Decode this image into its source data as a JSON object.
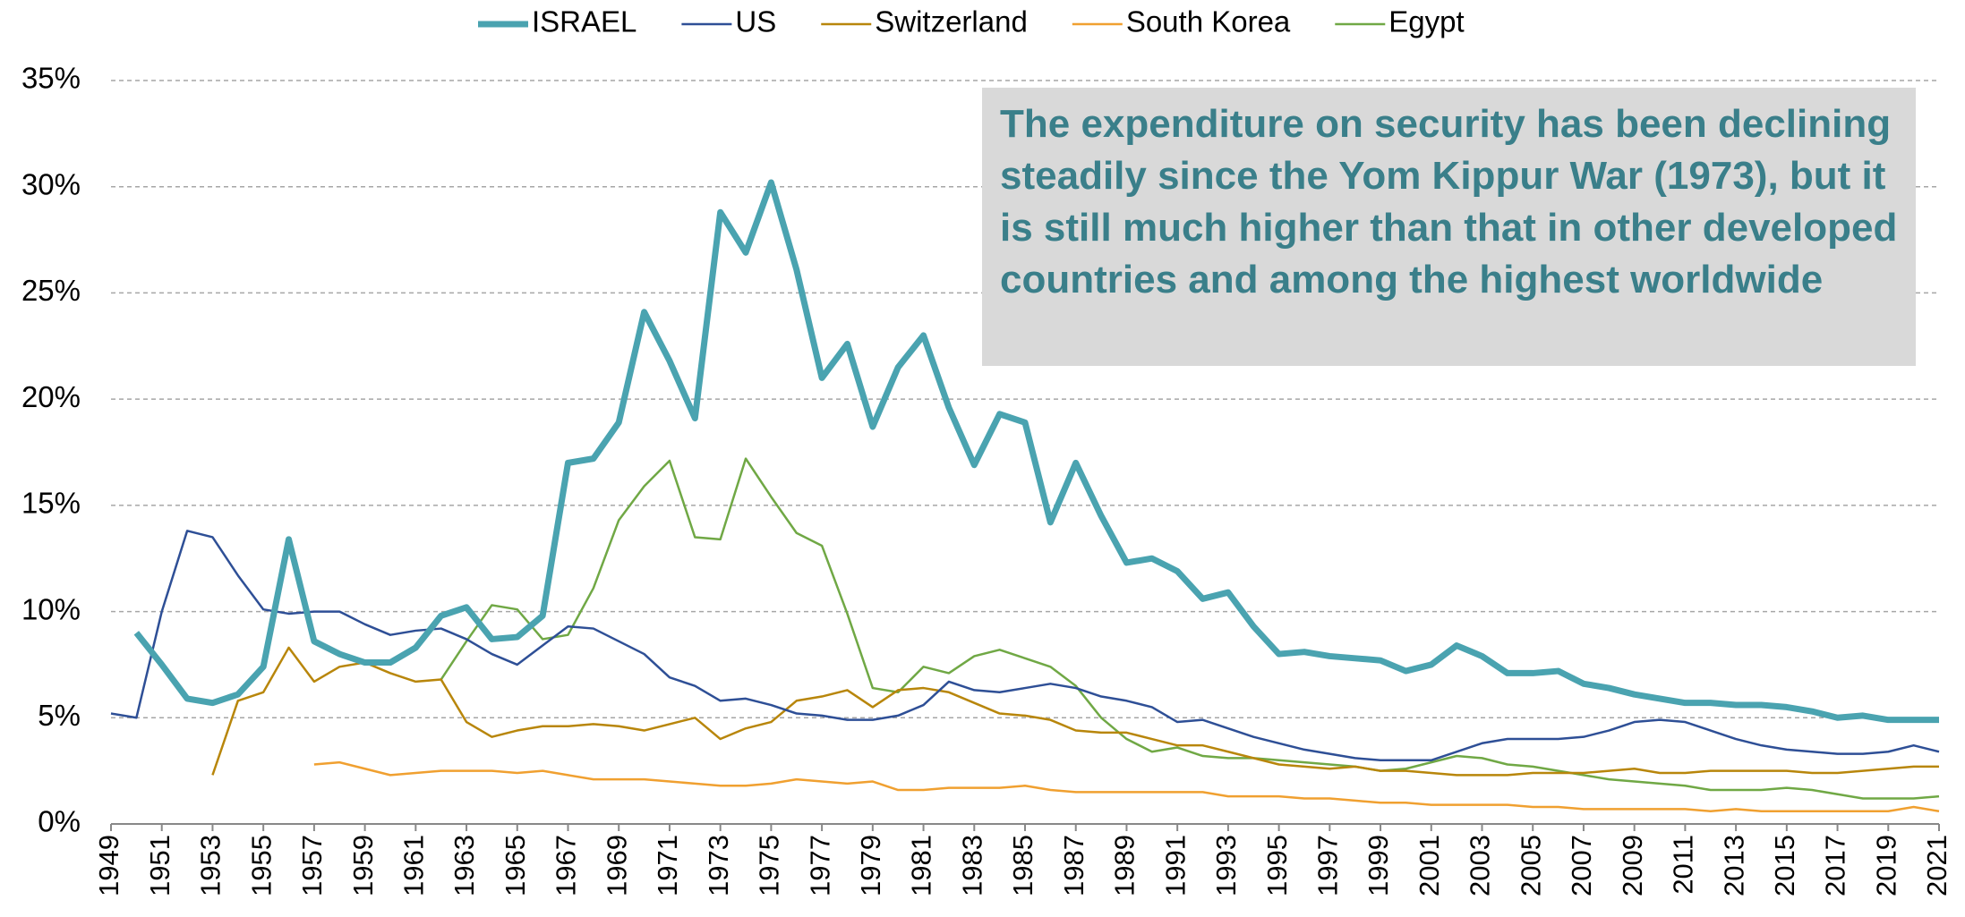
{
  "chart_data": {
    "type": "line",
    "annotation": "The expenditure on security has been declining steadily since the Yom Kippur War (1973), but it is still much higher than that in other developed countries and among the highest worldwide",
    "x": [
      1949,
      1950,
      1951,
      1952,
      1953,
      1954,
      1955,
      1956,
      1957,
      1958,
      1959,
      1960,
      1961,
      1962,
      1963,
      1964,
      1965,
      1966,
      1967,
      1968,
      1969,
      1970,
      1971,
      1972,
      1973,
      1974,
      1975,
      1976,
      1977,
      1978,
      1979,
      1980,
      1981,
      1982,
      1983,
      1984,
      1985,
      1986,
      1987,
      1988,
      1989,
      1990,
      1991,
      1992,
      1993,
      1994,
      1995,
      1996,
      1997,
      1998,
      1999,
      2000,
      2001,
      2002,
      2003,
      2004,
      2005,
      2006,
      2007,
      2008,
      2009,
      2010,
      2011,
      2012,
      2013,
      2014,
      2015,
      2016,
      2017,
      2018,
      2019,
      2020,
      2021
    ],
    "xlim": [
      1949,
      2021
    ],
    "xticks": [
      1949,
      1951,
      1953,
      1955,
      1957,
      1959,
      1961,
      1963,
      1965,
      1967,
      1969,
      1971,
      1973,
      1975,
      1977,
      1979,
      1981,
      1983,
      1985,
      1987,
      1989,
      1991,
      1993,
      1995,
      1997,
      1999,
      2001,
      2003,
      2005,
      2007,
      2009,
      2011,
      2013,
      2015,
      2017,
      2019,
      2021
    ],
    "ylim": [
      0,
      35
    ],
    "yticks": [
      {
        "value": 0,
        "label": "0%"
      },
      {
        "value": 5,
        "label": "5%"
      },
      {
        "value": 10,
        "label": "10%"
      },
      {
        "value": 15,
        "label": "15%"
      },
      {
        "value": 20,
        "label": "20%"
      },
      {
        "value": 25,
        "label": "25%"
      },
      {
        "value": 30,
        "label": "30%"
      },
      {
        "value": 35,
        "label": "35%"
      }
    ],
    "grid": true,
    "legend": "top",
    "series": [
      {
        "name": "ISRAEL",
        "color": "#4aa3b0",
        "width": 7,
        "values": [
          null,
          9.0,
          7.5,
          5.9,
          5.7,
          6.1,
          7.4,
          13.4,
          8.6,
          8.0,
          7.6,
          7.6,
          8.3,
          9.8,
          10.2,
          8.7,
          8.8,
          9.8,
          17.0,
          17.2,
          18.9,
          24.1,
          21.8,
          19.1,
          28.8,
          26.9,
          30.2,
          26.1,
          21.0,
          22.6,
          18.7,
          21.5,
          23.0,
          19.6,
          16.9,
          19.3,
          18.9,
          14.2,
          17.0,
          14.5,
          12.3,
          12.5,
          11.9,
          10.6,
          10.9,
          9.3,
          8.0,
          8.1,
          7.9,
          7.8,
          7.7,
          7.2,
          7.5,
          8.4,
          7.9,
          7.1,
          7.1,
          7.2,
          6.6,
          6.4,
          6.1,
          5.9,
          5.7,
          5.7,
          5.6,
          5.6,
          5.5,
          5.3,
          5.0,
          5.1,
          4.9,
          4.9,
          4.9
        ]
      },
      {
        "name": "US",
        "color": "#2e4f96",
        "width": 2.5,
        "values": [
          5.2,
          5.0,
          10.0,
          13.8,
          13.5,
          11.7,
          10.1,
          9.9,
          10.0,
          10.0,
          9.4,
          8.9,
          9.1,
          9.2,
          8.7,
          8.0,
          7.5,
          8.4,
          9.3,
          9.2,
          8.6,
          8.0,
          6.9,
          6.5,
          5.8,
          5.9,
          5.6,
          5.2,
          5.1,
          4.9,
          4.9,
          5.1,
          5.6,
          6.7,
          6.3,
          6.2,
          6.4,
          6.6,
          6.4,
          6.0,
          5.8,
          5.5,
          4.8,
          4.9,
          4.5,
          4.1,
          3.8,
          3.5,
          3.3,
          3.1,
          3.0,
          3.0,
          3.0,
          3.4,
          3.8,
          4.0,
          4.0,
          4.0,
          4.1,
          4.4,
          4.8,
          4.9,
          4.8,
          4.4,
          4.0,
          3.7,
          3.5,
          3.4,
          3.3,
          3.3,
          3.4,
          3.7,
          3.4
        ]
      },
      {
        "name": "Switzerland",
        "color": "#b8860b",
        "width": 2.5,
        "values": [
          null,
          null,
          null,
          null,
          2.3,
          5.8,
          6.2,
          8.3,
          6.7,
          7.4,
          7.6,
          7.1,
          6.7,
          6.8,
          4.8,
          4.1,
          4.4,
          4.6,
          4.6,
          4.7,
          4.6,
          4.4,
          4.7,
          5.0,
          4.0,
          4.5,
          4.8,
          5.8,
          6.0,
          6.3,
          5.5,
          6.3,
          6.4,
          6.2,
          5.7,
          5.2,
          5.1,
          4.9,
          4.4,
          4.3,
          4.3,
          4.0,
          3.7,
          3.7,
          3.4,
          3.1,
          2.8,
          2.7,
          2.6,
          2.7,
          2.5,
          2.5,
          2.4,
          2.3,
          2.3,
          2.3,
          2.4,
          2.4,
          2.4,
          2.5,
          2.6,
          2.4,
          2.4,
          2.5,
          2.5,
          2.5,
          2.5,
          2.4,
          2.4,
          2.5,
          2.6,
          2.7,
          2.7
        ]
      },
      {
        "name": "South Korea",
        "color": "#f0a030",
        "width": 2.5,
        "values": [
          null,
          null,
          null,
          null,
          null,
          null,
          null,
          null,
          2.8,
          2.9,
          2.6,
          2.3,
          2.4,
          2.5,
          2.5,
          2.5,
          2.4,
          2.5,
          2.3,
          2.1,
          2.1,
          2.1,
          2.0,
          1.9,
          1.8,
          1.8,
          1.9,
          2.1,
          2.0,
          1.9,
          2.0,
          1.6,
          1.6,
          1.7,
          1.7,
          1.7,
          1.8,
          1.6,
          1.5,
          1.5,
          1.5,
          1.5,
          1.5,
          1.5,
          1.3,
          1.3,
          1.3,
          1.2,
          1.2,
          1.1,
          1.0,
          1.0,
          0.9,
          0.9,
          0.9,
          0.9,
          0.8,
          0.8,
          0.7,
          0.7,
          0.7,
          0.7,
          0.7,
          0.6,
          0.7,
          0.6,
          0.6,
          0.6,
          0.6,
          0.6,
          0.6,
          0.8,
          0.6
        ]
      },
      {
        "name": "Egypt",
        "color": "#70a845",
        "width": 2.5,
        "values": [
          null,
          null,
          null,
          null,
          null,
          null,
          null,
          null,
          null,
          null,
          null,
          null,
          null,
          6.8,
          8.6,
          10.3,
          10.1,
          8.7,
          8.9,
          11.1,
          14.3,
          15.9,
          17.1,
          13.5,
          13.4,
          17.2,
          15.4,
          13.7,
          13.1,
          9.9,
          6.4,
          6.2,
          7.4,
          7.1,
          7.9,
          8.2,
          7.8,
          7.4,
          6.5,
          5.0,
          4.0,
          3.4,
          3.6,
          3.2,
          3.1,
          3.1,
          3.0,
          2.9,
          2.8,
          2.7,
          2.5,
          2.6,
          2.9,
          3.2,
          3.1,
          2.8,
          2.7,
          2.5,
          2.3,
          2.1,
          2.0,
          1.9,
          1.8,
          1.6,
          1.6,
          1.6,
          1.7,
          1.6,
          1.4,
          1.2,
          1.2,
          1.2,
          1.3
        ]
      }
    ]
  }
}
